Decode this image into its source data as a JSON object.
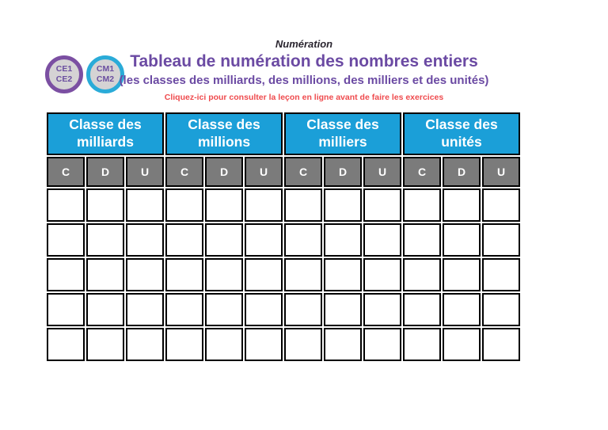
{
  "page": {
    "kicker": "Numération",
    "title": "Tableau de numération des nombres entiers",
    "subtitle": "(les classes des milliards, des millions, des milliers et des unités)",
    "link_text": "Cliquez-ici pour consulter la leçon en ligne avant de faire les exercices"
  },
  "badges": [
    {
      "lines": [
        "CE1",
        "CE2"
      ],
      "border_color": "#7b4fa2"
    },
    {
      "lines": [
        "CM1",
        "CM2"
      ],
      "border_color": "#2aabd8"
    }
  ],
  "table": {
    "class_headers": [
      {
        "lines": [
          "Classe des",
          "milliards"
        ]
      },
      {
        "lines": [
          "Classe des",
          "millions"
        ]
      },
      {
        "lines": [
          "Classe des",
          "milliers"
        ]
      },
      {
        "lines": [
          "Classe des",
          "unités"
        ]
      }
    ],
    "sub_headers": [
      "C",
      "D",
      "U"
    ],
    "body_row_count": 5,
    "columns_per_class": 3,
    "body_cell_value": ""
  },
  "colors": {
    "class_header_bg": "#1b9fd8",
    "sub_header_bg": "#7b7b7b",
    "header_text": "#ffffff",
    "title_purple": "#6b4aa3",
    "link_red": "#ef4b4e",
    "badge_fill": "#d5d3d4",
    "badge_text": "#6b4fa0",
    "table_border": "#000000"
  }
}
